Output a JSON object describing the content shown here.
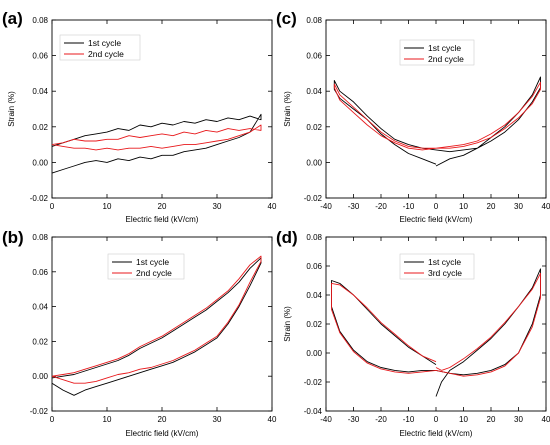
{
  "chart_data": [
    {
      "panel": "(a)",
      "type": "line",
      "xlabel": "Electric field (kV/cm)",
      "ylabel": "Strain (%)",
      "xlim": [
        0,
        40
      ],
      "ylim": [
        -0.02,
        0.08
      ],
      "xticks": [
        0,
        10,
        20,
        30,
        40
      ],
      "yticks": [
        -0.02,
        0.0,
        0.02,
        0.04,
        0.06,
        0.08
      ],
      "ytick_labels": [
        "-0.02",
        "0.00",
        "0.02",
        "0.04",
        "0.06",
        "0.08"
      ],
      "show_ylabel": true,
      "legend_position": "top-left",
      "series": [
        {
          "name": "1st cycle",
          "color": "#000000",
          "x": [
            0,
            2,
            4,
            6,
            8,
            10,
            12,
            14,
            16,
            18,
            20,
            22,
            24,
            26,
            28,
            30,
            32,
            34,
            36,
            37,
            38,
            38,
            36,
            34,
            32,
            30,
            28,
            26,
            24,
            22,
            20,
            18,
            16,
            14,
            12,
            10,
            8,
            6,
            4,
            2,
            0
          ],
          "y": [
            -0.006,
            -0.004,
            -0.002,
            0.0,
            0.001,
            0.0,
            0.002,
            0.001,
            0.003,
            0.002,
            0.004,
            0.004,
            0.006,
            0.007,
            0.008,
            0.01,
            0.012,
            0.014,
            0.017,
            0.022,
            0.027,
            0.024,
            0.026,
            0.024,
            0.025,
            0.023,
            0.024,
            0.022,
            0.023,
            0.021,
            0.022,
            0.02,
            0.021,
            0.018,
            0.019,
            0.017,
            0.016,
            0.015,
            0.013,
            0.011,
            0.009
          ]
        },
        {
          "name": "2nd cycle",
          "color": "#e8191c",
          "x": [
            0,
            2,
            4,
            6,
            8,
            10,
            12,
            14,
            16,
            18,
            20,
            22,
            24,
            26,
            28,
            30,
            32,
            34,
            36,
            38,
            38,
            36,
            34,
            32,
            30,
            28,
            26,
            24,
            22,
            20,
            18,
            16,
            14,
            12,
            10,
            8,
            6,
            4,
            2,
            0
          ],
          "y": [
            0.01,
            0.009,
            0.008,
            0.008,
            0.007,
            0.008,
            0.007,
            0.008,
            0.008,
            0.009,
            0.008,
            0.009,
            0.01,
            0.01,
            0.011,
            0.012,
            0.013,
            0.015,
            0.017,
            0.021,
            0.018,
            0.019,
            0.018,
            0.019,
            0.017,
            0.018,
            0.016,
            0.017,
            0.015,
            0.016,
            0.015,
            0.014,
            0.015,
            0.013,
            0.013,
            0.012,
            0.012,
            0.013,
            0.011,
            0.01
          ]
        }
      ]
    },
    {
      "panel": "(c)",
      "type": "line",
      "xlabel": "Electric field (kV/cm)",
      "ylabel": "Strain (%)",
      "xlim": [
        -40,
        40
      ],
      "ylim": [
        -0.02,
        0.08
      ],
      "xticks": [
        -40,
        -30,
        -20,
        -10,
        0,
        10,
        20,
        30,
        40
      ],
      "yticks": [
        -0.02,
        0.0,
        0.02,
        0.04,
        0.06,
        0.08
      ],
      "ytick_labels": [
        "-0.02",
        "0.00",
        "0.02",
        "0.04",
        "0.06",
        "0.08"
      ],
      "show_ylabel": true,
      "legend_position": "top-right",
      "series": [
        {
          "name": "1st cycle",
          "color": "#000000",
          "x": [
            0,
            5,
            10,
            15,
            20,
            25,
            30,
            35,
            38,
            38,
            35,
            30,
            25,
            20,
            15,
            10,
            5,
            0,
            -5,
            -10,
            -15,
            -20,
            -25,
            -30,
            -35,
            -37,
            -37,
            -35,
            -30,
            -25,
            -20,
            -15,
            -10,
            -5,
            0
          ],
          "y": [
            -0.002,
            0.002,
            0.004,
            0.008,
            0.014,
            0.02,
            0.028,
            0.038,
            0.048,
            0.042,
            0.034,
            0.024,
            0.017,
            0.012,
            0.008,
            0.007,
            0.006,
            0.007,
            0.008,
            0.01,
            0.013,
            0.019,
            0.026,
            0.034,
            0.04,
            0.046,
            0.041,
            0.036,
            0.03,
            0.024,
            0.016,
            0.01,
            0.005,
            0.002,
            -0.001
          ]
        },
        {
          "name": "2nd cycle",
          "color": "#e8191c",
          "x": [
            0,
            5,
            10,
            15,
            20,
            25,
            30,
            35,
            38,
            38,
            35,
            30,
            25,
            20,
            15,
            10,
            5,
            0,
            -5,
            -10,
            -15,
            -20,
            -25,
            -30,
            -35,
            -37,
            -37,
            -35,
            -30,
            -25,
            -20,
            -15,
            -10,
            -5,
            0
          ],
          "y": [
            0.008,
            0.009,
            0.01,
            0.012,
            0.016,
            0.021,
            0.028,
            0.037,
            0.045,
            0.041,
            0.033,
            0.025,
            0.019,
            0.014,
            0.011,
            0.009,
            0.008,
            0.008,
            0.008,
            0.009,
            0.012,
            0.017,
            0.024,
            0.031,
            0.038,
            0.044,
            0.042,
            0.035,
            0.028,
            0.021,
            0.015,
            0.011,
            0.008,
            0.007,
            0.008
          ]
        }
      ]
    },
    {
      "panel": "(b)",
      "type": "line",
      "xlabel": "Electric field (kV/cm)",
      "ylabel": "Strain (%)",
      "xlim": [
        0,
        40
      ],
      "ylim": [
        -0.02,
        0.08
      ],
      "xticks": [
        0,
        10,
        20,
        30,
        40
      ],
      "yticks": [
        -0.02,
        0.0,
        0.02,
        0.04,
        0.06,
        0.08
      ],
      "ytick_labels": [
        "-0.02",
        "0.00",
        "0.02",
        "0.04",
        "0.06",
        "0.08"
      ],
      "show_ylabel": false,
      "legend_position": "top-center",
      "series": [
        {
          "name": "1st cycle",
          "color": "#000000",
          "x": [
            0,
            2,
            4,
            6,
            8,
            10,
            12,
            14,
            16,
            18,
            20,
            22,
            24,
            26,
            28,
            30,
            32,
            34,
            36,
            38,
            38,
            36,
            34,
            32,
            30,
            28,
            26,
            24,
            22,
            20,
            18,
            16,
            14,
            12,
            10,
            8,
            6,
            4,
            2,
            0
          ],
          "y": [
            -0.004,
            -0.008,
            -0.011,
            -0.008,
            -0.006,
            -0.004,
            -0.002,
            0.0,
            0.002,
            0.004,
            0.006,
            0.008,
            0.011,
            0.014,
            0.018,
            0.022,
            0.03,
            0.04,
            0.052,
            0.065,
            0.068,
            0.062,
            0.054,
            0.048,
            0.043,
            0.038,
            0.034,
            0.03,
            0.026,
            0.022,
            0.019,
            0.016,
            0.012,
            0.009,
            0.007,
            0.005,
            0.003,
            0.001,
            0.0,
            -0.001
          ]
        },
        {
          "name": "2nd cycle",
          "color": "#e8191c",
          "x": [
            0,
            2,
            4,
            6,
            8,
            10,
            12,
            14,
            16,
            18,
            20,
            22,
            24,
            26,
            28,
            30,
            32,
            34,
            36,
            38,
            38,
            36,
            34,
            32,
            30,
            28,
            26,
            24,
            22,
            20,
            18,
            16,
            14,
            12,
            10,
            8,
            6,
            4,
            2,
            0
          ],
          "y": [
            0.0,
            -0.002,
            -0.004,
            -0.004,
            -0.003,
            -0.001,
            0.001,
            0.002,
            0.004,
            0.005,
            0.007,
            0.009,
            0.012,
            0.015,
            0.019,
            0.023,
            0.031,
            0.041,
            0.054,
            0.066,
            0.069,
            0.064,
            0.056,
            0.049,
            0.044,
            0.039,
            0.035,
            0.031,
            0.027,
            0.023,
            0.02,
            0.017,
            0.013,
            0.01,
            0.008,
            0.006,
            0.004,
            0.002,
            0.001,
            0.0
          ]
        }
      ]
    },
    {
      "panel": "(d)",
      "type": "line",
      "xlabel": "Electric field (kV/cm)",
      "ylabel": "Strain (%)",
      "xlim": [
        -40,
        40
      ],
      "ylim": [
        -0.04,
        0.08
      ],
      "xticks": [
        -40,
        -30,
        -20,
        -10,
        0,
        10,
        20,
        30,
        40
      ],
      "yticks": [
        -0.04,
        -0.02,
        0.0,
        0.02,
        0.04,
        0.06,
        0.08
      ],
      "ytick_labels": [
        "-0.04",
        "-0.02",
        "0.00",
        "0.02",
        "0.04",
        "0.06",
        "0.08"
      ],
      "show_ylabel": true,
      "legend_position": "top-right",
      "series": [
        {
          "name": "1st cycle",
          "color": "#000000",
          "x": [
            0,
            2,
            5,
            10,
            15,
            20,
            25,
            30,
            35,
            38,
            38,
            35,
            30,
            25,
            20,
            15,
            10,
            5,
            0,
            -5,
            -10,
            -15,
            -20,
            -25,
            -30,
            -35,
            -38,
            -38,
            -35,
            -30,
            -25,
            -20,
            -15,
            -10,
            -5,
            0
          ],
          "y": [
            -0.03,
            -0.02,
            -0.012,
            -0.006,
            0.002,
            0.01,
            0.02,
            0.032,
            0.045,
            0.058,
            0.04,
            0.02,
            0.0,
            -0.008,
            -0.012,
            -0.014,
            -0.015,
            -0.014,
            -0.012,
            -0.012,
            -0.013,
            -0.012,
            -0.01,
            -0.006,
            0.002,
            0.015,
            0.032,
            0.05,
            0.048,
            0.04,
            0.03,
            0.02,
            0.012,
            0.004,
            -0.002,
            -0.008
          ]
        },
        {
          "name": "3rd cycle",
          "color": "#e8191c",
          "x": [
            0,
            2,
            5,
            10,
            15,
            20,
            25,
            30,
            35,
            38,
            38,
            35,
            30,
            25,
            20,
            15,
            10,
            5,
            0,
            -5,
            -10,
            -15,
            -20,
            -25,
            -30,
            -35,
            -38,
            -38,
            -35,
            -30,
            -25,
            -20,
            -15,
            -10,
            -5,
            0
          ],
          "y": [
            -0.01,
            -0.012,
            -0.01,
            -0.004,
            0.003,
            0.011,
            0.021,
            0.032,
            0.044,
            0.055,
            0.038,
            0.018,
            0.0,
            -0.009,
            -0.013,
            -0.015,
            -0.016,
            -0.014,
            -0.012,
            -0.013,
            -0.014,
            -0.013,
            -0.011,
            -0.007,
            0.001,
            0.014,
            0.03,
            0.048,
            0.047,
            0.04,
            0.031,
            0.021,
            0.013,
            0.005,
            -0.002,
            -0.006
          ]
        }
      ]
    }
  ]
}
